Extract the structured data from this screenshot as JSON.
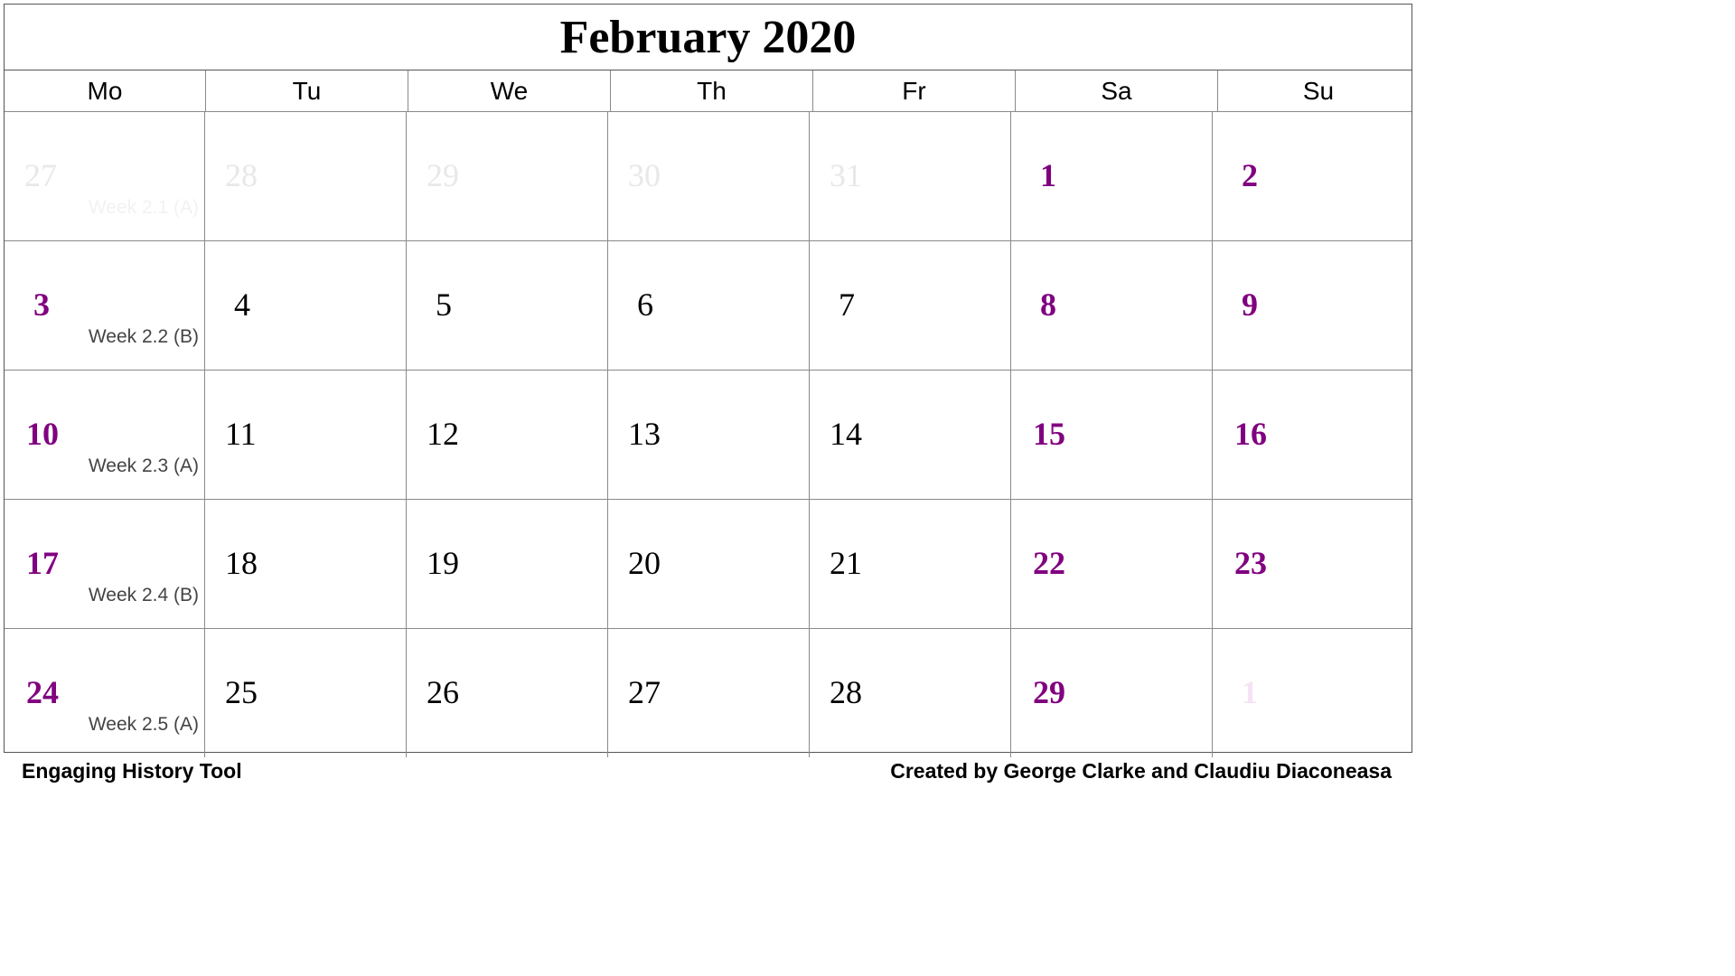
{
  "calendar": {
    "title": "February 2020",
    "weekdays": [
      "Mo",
      "Tu",
      "We",
      "Th",
      "Fr",
      "Sa",
      "Su"
    ],
    "weeks": [
      {
        "label": "Week 2.1 (A)",
        "label_faded": true,
        "days": [
          {
            "num": "27",
            "kind": "other"
          },
          {
            "num": "28",
            "kind": "other"
          },
          {
            "num": "29",
            "kind": "other"
          },
          {
            "num": "30",
            "kind": "other"
          },
          {
            "num": "31",
            "kind": "other"
          },
          {
            "num": "1",
            "kind": "weekend"
          },
          {
            "num": "2",
            "kind": "weekend"
          }
        ]
      },
      {
        "label": "Week 2.2 (B)",
        "label_faded": false,
        "days": [
          {
            "num": "3",
            "kind": "weekend"
          },
          {
            "num": "4",
            "kind": "normal"
          },
          {
            "num": "5",
            "kind": "normal"
          },
          {
            "num": "6",
            "kind": "normal"
          },
          {
            "num": "7",
            "kind": "normal"
          },
          {
            "num": "8",
            "kind": "weekend"
          },
          {
            "num": "9",
            "kind": "weekend"
          }
        ]
      },
      {
        "label": "Week 2.3 (A)",
        "label_faded": false,
        "days": [
          {
            "num": "10",
            "kind": "weekend"
          },
          {
            "num": "11",
            "kind": "normal"
          },
          {
            "num": "12",
            "kind": "normal"
          },
          {
            "num": "13",
            "kind": "normal"
          },
          {
            "num": "14",
            "kind": "normal"
          },
          {
            "num": "15",
            "kind": "weekend"
          },
          {
            "num": "16",
            "kind": "weekend"
          }
        ]
      },
      {
        "label": "Week 2.4 (B)",
        "label_faded": false,
        "days": [
          {
            "num": "17",
            "kind": "weekend"
          },
          {
            "num": "18",
            "kind": "normal"
          },
          {
            "num": "19",
            "kind": "normal"
          },
          {
            "num": "20",
            "kind": "normal"
          },
          {
            "num": "21",
            "kind": "normal"
          },
          {
            "num": "22",
            "kind": "weekend"
          },
          {
            "num": "23",
            "kind": "weekend"
          }
        ]
      },
      {
        "label": "Week 2.5 (A)",
        "label_faded": false,
        "days": [
          {
            "num": "24",
            "kind": "weekend"
          },
          {
            "num": "25",
            "kind": "normal"
          },
          {
            "num": "26",
            "kind": "normal"
          },
          {
            "num": "27",
            "kind": "normal"
          },
          {
            "num": "28",
            "kind": "normal"
          },
          {
            "num": "29",
            "kind": "weekend"
          },
          {
            "num": "1",
            "kind": "other-weekend"
          }
        ]
      }
    ]
  },
  "footer": {
    "left": "Engaging History Tool",
    "right": "Created by George Clarke and Claudiu Diaconeasa"
  },
  "colors": {
    "weekend_date": "#800080",
    "normal_date": "#000000",
    "week_label": "#444444",
    "grid_line": "#8a8a8a"
  }
}
